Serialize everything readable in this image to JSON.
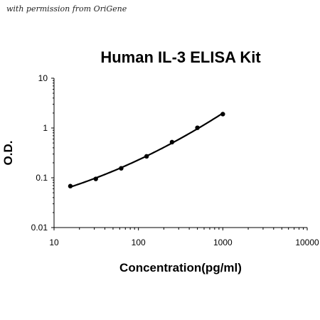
{
  "watermark": "with permission from OriGene",
  "chart_data": {
    "type": "line",
    "title": "Human IL-3 ELISA Kit",
    "xlabel": "Concentration(pg/ml)",
    "ylabel": "O.D.",
    "x_scale": "log",
    "y_scale": "log",
    "xlim": [
      10,
      10000
    ],
    "ylim": [
      0.01,
      10
    ],
    "x_ticks": [
      "10",
      "100",
      "1000",
      "10000"
    ],
    "y_ticks": [
      "0.01",
      "0.1",
      "1",
      "10"
    ],
    "grid": false,
    "series": [
      {
        "x": [
          15.6,
          31.25,
          62.5,
          125,
          250,
          500,
          1000
        ],
        "y": [
          0.068,
          0.095,
          0.155,
          0.27,
          0.52,
          1.01,
          1.9
        ]
      }
    ]
  }
}
